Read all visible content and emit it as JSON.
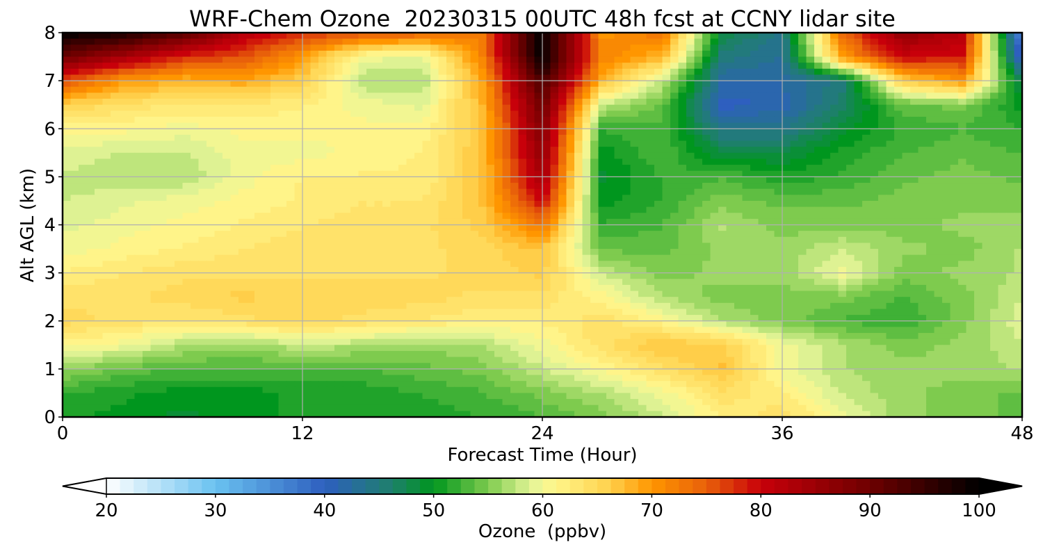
{
  "chart_data": {
    "type": "heatmap",
    "title": "WRF-Chem Ozone  20230315 00UTC 48h fcst at CCNY lidar site",
    "xlabel": "Forecast Time (Hour)",
    "ylabel": "Alt AGL (km)",
    "xlim": [
      0,
      48
    ],
    "ylim": [
      0,
      8
    ],
    "x_ticks": [
      0,
      12,
      24,
      36,
      48
    ],
    "y_ticks": [
      0,
      1,
      2,
      3,
      4,
      5,
      6,
      7,
      8
    ],
    "grid": true,
    "x_hours": [
      0,
      3,
      6,
      9,
      12,
      15,
      18,
      21,
      24,
      27,
      30,
      33,
      36,
      39,
      42,
      45,
      48
    ],
    "y_km": [
      0,
      0.5,
      1,
      1.5,
      2,
      2.5,
      3,
      3.5,
      4,
      4.5,
      5,
      5.5,
      6,
      6.5,
      7,
      7.5,
      8
    ],
    "ozone_ppbv": [
      [
        51,
        50,
        49,
        50,
        51,
        51,
        51,
        52,
        53,
        55,
        58,
        62,
        64,
        60,
        56,
        55,
        54
      ],
      [
        52,
        51,
        50,
        50,
        51,
        51,
        52,
        53,
        55,
        57,
        60,
        64,
        62,
        58,
        56,
        55,
        54
      ],
      [
        56,
        54,
        53,
        53,
        53,
        53,
        54,
        55,
        58,
        61,
        64,
        67,
        60,
        57,
        56,
        56,
        57
      ],
      [
        61,
        60,
        57,
        56,
        58,
        57,
        56,
        57,
        60,
        64,
        67,
        66,
        60,
        57,
        55,
        56,
        58
      ],
      [
        65,
        64,
        63,
        64,
        65,
        64,
        63,
        62,
        62,
        64,
        61,
        57,
        55,
        53,
        52,
        55,
        59
      ],
      [
        64,
        64,
        65,
        66,
        65,
        65,
        65,
        64,
        64,
        61,
        57,
        55,
        55,
        55,
        53,
        55,
        58
      ],
      [
        62,
        63,
        64,
        64,
        64,
        64,
        64,
        65,
        66,
        58,
        55,
        56,
        56,
        60,
        55,
        56,
        57
      ],
      [
        60,
        61,
        62,
        63,
        64,
        64,
        64,
        65,
        67,
        54,
        54,
        56,
        56,
        58,
        56,
        55,
        57
      ],
      [
        59,
        60,
        61,
        62,
        63,
        64,
        64,
        66,
        73,
        52,
        53,
        57,
        55,
        55,
        55,
        56,
        56
      ],
      [
        58,
        59,
        60,
        61,
        62,
        63,
        63,
        67,
        80,
        50,
        52,
        55,
        54,
        54,
        55,
        55,
        55
      ],
      [
        58,
        57,
        57,
        60,
        62,
        62,
        62,
        67,
        84,
        49,
        52,
        53,
        51,
        52,
        54,
        55,
        54
      ],
      [
        59,
        58,
        58,
        60,
        60,
        61,
        62,
        67,
        86,
        50,
        53,
        48,
        48,
        51,
        53,
        54,
        53
      ],
      [
        61,
        61,
        60,
        61,
        61,
        61,
        61,
        67,
        88,
        52,
        53,
        44,
        44,
        49,
        52,
        53,
        52
      ],
      [
        66,
        64,
        63,
        63,
        62,
        60,
        59,
        68,
        90,
        58,
        54,
        40,
        41,
        46,
        54,
        55,
        50
      ],
      [
        76,
        70,
        68,
        69,
        66,
        57,
        57,
        69,
        94,
        68,
        58,
        42,
        42,
        45,
        66,
        70,
        47
      ],
      [
        90,
        84,
        78,
        76,
        70,
        60,
        59,
        72,
        100,
        72,
        68,
        45,
        43,
        70,
        80,
        79,
        38
      ],
      [
        100,
        98,
        92,
        82,
        78,
        76,
        75,
        72,
        100,
        70,
        73,
        48,
        44,
        74,
        86,
        82,
        34
      ]
    ],
    "colorbar": {
      "label": "Ozone  (ppbv)",
      "min": 20,
      "max": 100,
      "ticks": [
        20,
        30,
        40,
        50,
        60,
        70,
        80,
        90,
        100
      ],
      "extend": "both",
      "colormap_stops": [
        [
          20,
          "#ffffff"
        ],
        [
          30,
          "#6ac2f0"
        ],
        [
          40,
          "#2e5fbf"
        ],
        [
          46,
          "#1f7f6e"
        ],
        [
          50,
          "#00961e"
        ],
        [
          55,
          "#7ecb4e"
        ],
        [
          59,
          "#e4f598"
        ],
        [
          61,
          "#fff68c"
        ],
        [
          66,
          "#ffd24e"
        ],
        [
          70,
          "#ff9600"
        ],
        [
          75,
          "#e8600a"
        ],
        [
          80,
          "#c8000a"
        ],
        [
          90,
          "#6e0000"
        ],
        [
          100,
          "#000000"
        ]
      ]
    }
  }
}
